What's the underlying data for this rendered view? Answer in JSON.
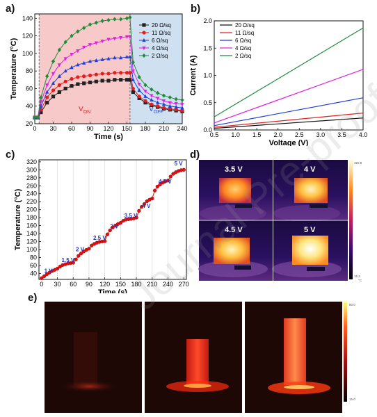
{
  "panels": {
    "a": "a)",
    "b": "b)",
    "c": "c)",
    "d": "d)",
    "e": "e)"
  },
  "watermark": "Journal Pre-proof",
  "chart_data": [
    {
      "id": "a",
      "type": "line",
      "xlabel": "Time (s)",
      "ylabel": "Temperature (°C)",
      "xlim": [
        0,
        240
      ],
      "ylim": [
        20,
        145
      ],
      "xticks": [
        0,
        30,
        60,
        90,
        120,
        150,
        180,
        210,
        240
      ],
      "yticks": [
        20,
        40,
        60,
        80,
        100,
        120,
        140
      ],
      "regions": [
        {
          "label": "V",
          "sub": "ON",
          "from": 7,
          "to": 155,
          "color": "#f7c9c9"
        },
        {
          "label": "V",
          "sub": "OFF",
          "from": 155,
          "to": 240,
          "color": "#cfe0f1"
        }
      ],
      "x": [
        0,
        5,
        10,
        20,
        30,
        40,
        50,
        60,
        70,
        80,
        90,
        100,
        110,
        120,
        130,
        140,
        150,
        155,
        160,
        170,
        180,
        190,
        200,
        210,
        220,
        230,
        240
      ],
      "series": [
        {
          "name": "20 Ω/sq",
          "color": "#222222",
          "marker": "square",
          "values": [
            27,
            27,
            33,
            44,
            51,
            56,
            60,
            63,
            65,
            66,
            67,
            68,
            69,
            69,
            70,
            70,
            70,
            70,
            56,
            49,
            44,
            41,
            39,
            37,
            36,
            35,
            34
          ]
        },
        {
          "name": "11 Ω/sq",
          "color": "#e02020",
          "marker": "circle",
          "values": [
            27,
            27,
            36,
            50,
            58,
            64,
            68,
            71,
            73,
            74,
            75,
            76,
            77,
            77,
            78,
            78,
            78,
            78,
            60,
            51,
            46,
            42,
            40,
            38,
            37,
            36,
            35
          ]
        },
        {
          "name": "6 Ω/sq",
          "color": "#1f3fd8",
          "marker": "triangle-up",
          "values": [
            27,
            27,
            40,
            56,
            66,
            74,
            80,
            84,
            87,
            89,
            91,
            92,
            93,
            94,
            95,
            95,
            96,
            96,
            70,
            58,
            51,
            47,
            44,
            42,
            40,
            39,
            38
          ]
        },
        {
          "name": "4 Ω/sq",
          "color": "#e020e0",
          "marker": "triangle-down",
          "values": [
            27,
            27,
            45,
            64,
            77,
            87,
            94,
            99,
            103,
            107,
            110,
            112,
            114,
            116,
            117,
            118,
            119,
            119,
            80,
            65,
            57,
            52,
            49,
            46,
            44,
            43,
            42
          ]
        },
        {
          "name": "2 Ω/sq",
          "color": "#1f8a3a",
          "marker": "diamond",
          "values": [
            27,
            27,
            50,
            74,
            91,
            104,
            113,
            120,
            125,
            129,
            133,
            135,
            137,
            138,
            139,
            139,
            140,
            141,
            90,
            73,
            64,
            59,
            55,
            52,
            50,
            48,
            47
          ]
        }
      ]
    },
    {
      "id": "b",
      "type": "line",
      "xlabel": "Voltage (V)",
      "ylabel": "Current (A)",
      "xlim": [
        0.5,
        4.0
      ],
      "ylim": [
        0,
        2.0
      ],
      "xticks": [
        0.5,
        1.0,
        1.5,
        2.0,
        2.5,
        3.0,
        3.5,
        4.0
      ],
      "yticks": [
        0.0,
        0.5,
        1.0,
        1.5,
        2.0
      ],
      "x": [
        0.5,
        4.0
      ],
      "series": [
        {
          "name": "20  Ω/sq",
          "color": "#111111",
          "values": [
            0.03,
            0.22
          ]
        },
        {
          "name": "11  Ω/sq",
          "color": "#e02020",
          "values": [
            0.05,
            0.31
          ]
        },
        {
          "name": "6  Ω/sq",
          "color": "#1f3fd8",
          "values": [
            0.08,
            0.59
          ]
        },
        {
          "name": "4  Ω/sq",
          "color": "#e020e0",
          "values": [
            0.13,
            1.11
          ]
        },
        {
          "name": "2  Ω/sq",
          "color": "#1f8a3a",
          "values": [
            0.24,
            1.87
          ]
        }
      ]
    },
    {
      "id": "c",
      "type": "scatter",
      "xlabel": "Time (s)",
      "ylabel": "Temperature (°C)",
      "xlim": [
        -5,
        275
      ],
      "ylim": [
        25,
        325
      ],
      "xticks": [
        0,
        30,
        60,
        90,
        120,
        150,
        180,
        210,
        240,
        270
      ],
      "yticks": [
        40,
        60,
        80,
        100,
        120,
        140,
        160,
        180,
        200,
        220,
        240,
        260,
        280,
        300,
        320
      ],
      "gridlines_x": [
        30,
        60,
        90,
        120,
        150,
        180,
        210,
        240
      ],
      "x": [
        0,
        5,
        10,
        15,
        20,
        25,
        30,
        35,
        40,
        45,
        50,
        55,
        60,
        65,
        70,
        75,
        80,
        85,
        90,
        95,
        100,
        105,
        110,
        115,
        120,
        125,
        130,
        135,
        140,
        145,
        150,
        155,
        160,
        165,
        170,
        175,
        180,
        185,
        190,
        195,
        200,
        205,
        210,
        215,
        220,
        225,
        230,
        235,
        240,
        245,
        250,
        255,
        260,
        265,
        270
      ],
      "series": [
        {
          "name": "",
          "color": "#e01010",
          "values": [
            28,
            33,
            38,
            42,
            46,
            49,
            52,
            57,
            61,
            63,
            65,
            66,
            67,
            75,
            84,
            90,
            95,
            99,
            102,
            110,
            114,
            117,
            119,
            120,
            121,
            138,
            148,
            155,
            160,
            164,
            167,
            172,
            175,
            176,
            177,
            178,
            180,
            197,
            207,
            214,
            221,
            225,
            228,
            248,
            258,
            263,
            268,
            271,
            273,
            283,
            290,
            294,
            297,
            299,
            300
          ]
        }
      ],
      "annotations": [
        {
          "text": "1 V",
          "x": 5,
          "y": 42
        },
        {
          "text": "1.5 V",
          "x": 38,
          "y": 69
        },
        {
          "text": "2 V",
          "x": 65,
          "y": 96
        },
        {
          "text": "2.5 V",
          "x": 98,
          "y": 124
        },
        {
          "text": "3 V",
          "x": 130,
          "y": 153
        },
        {
          "text": "3.5 V",
          "x": 157,
          "y": 180
        },
        {
          "text": "4 V",
          "x": 191,
          "y": 205
        },
        {
          "text": "4.5 V",
          "x": 222,
          "y": 266
        },
        {
          "text": "5 V",
          "x": 252,
          "y": 311
        }
      ]
    }
  ],
  "thermal_d": {
    "labels": [
      "3.5 V",
      "4 V",
      "4.5 V",
      "5 V"
    ],
    "scale_max": "320.8",
    "scale_min": "15.3",
    "scale_unit": "°C"
  },
  "thermal_e": {
    "scale_max": "80.0",
    "scale_min": "15.0"
  }
}
